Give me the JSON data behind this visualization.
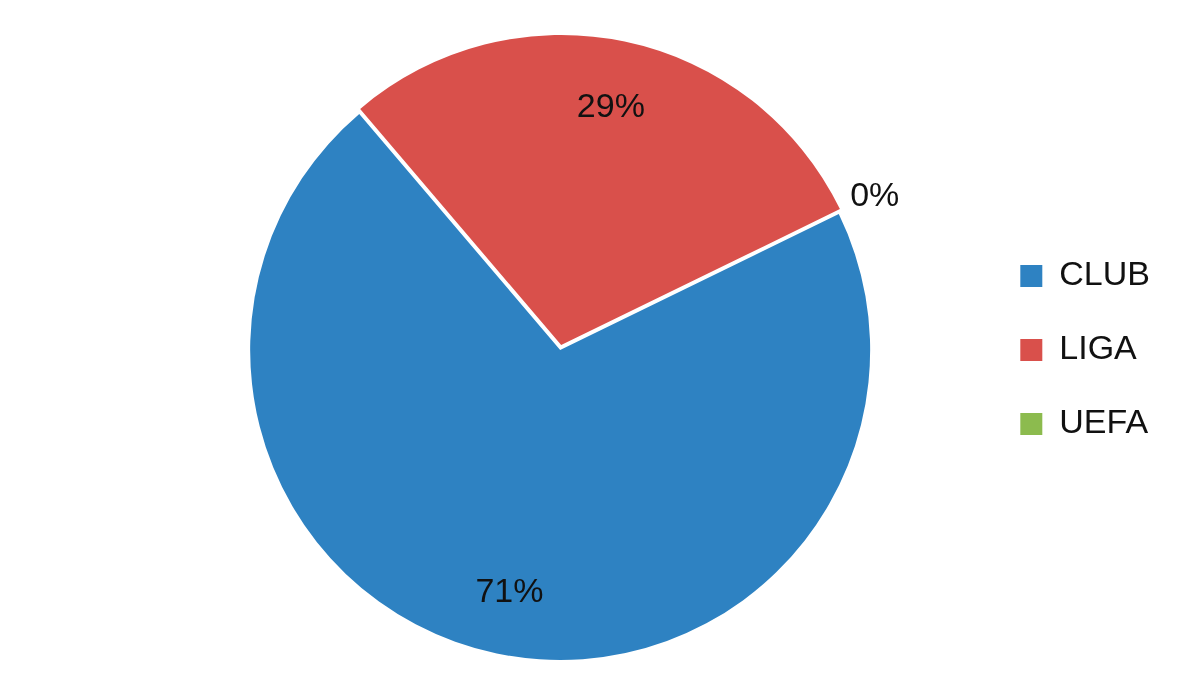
{
  "chart_data": {
    "type": "pie",
    "categories": [
      "CLUB",
      "LIGA",
      "UEFA"
    ],
    "values": [
      71,
      29,
      0
    ],
    "colors": [
      "#2e82c2",
      "#d9504b",
      "#8cbb4e"
    ],
    "value_labels": [
      "71%",
      "29%",
      "0%"
    ],
    "legend": "right"
  }
}
